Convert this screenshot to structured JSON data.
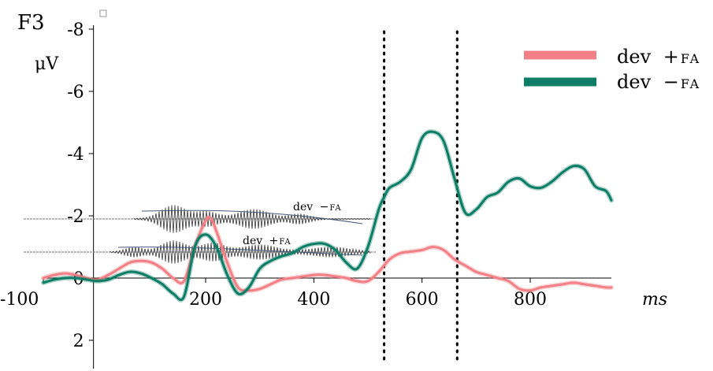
{
  "chart_data": {
    "type": "line",
    "panel_label": "F3",
    "y_unit_label": "μV",
    "x_unit_label": "ms",
    "x_range": [
      -100,
      950
    ],
    "y_range": [
      3,
      -8
    ],
    "y_inverted": true,
    "x_ticks": [
      "-100",
      "200",
      "400",
      "600",
      "800"
    ],
    "x_tick_values": [
      -100,
      200,
      400,
      600,
      800
    ],
    "y_ticks": [
      "-8",
      "-6",
      "-4",
      "-2",
      "0",
      "2"
    ],
    "y_tick_values": [
      -8,
      -6,
      -4,
      -2,
      0,
      2
    ],
    "vertical_markers_ms": [
      530,
      665
    ],
    "legend": {
      "placement": "top-right",
      "entries": [
        {
          "label": "dev",
          "symbol": "+",
          "sub": "FA",
          "color": "#f28086"
        },
        {
          "label": "dev",
          "symbol": "−",
          "sub": "FA",
          "color": "#0e7d65"
        }
      ]
    },
    "inset": {
      "label_top": "dev",
      "symbol_top": "−",
      "sub_top": "FA",
      "label_bottom": "dev",
      "symbol_bottom": "+",
      "sub_bottom": "FA"
    },
    "series": [
      {
        "color": "#f28086",
        "x": [
          -100,
          -80,
          -60,
          -40,
          -20,
          0,
          20,
          40,
          60,
          80,
          100,
          120,
          140,
          160,
          180,
          200,
          210,
          220,
          240,
          260,
          280,
          300,
          320,
          340,
          360,
          380,
          400,
          420,
          440,
          460,
          480,
          500,
          520,
          540,
          560,
          580,
          600,
          620,
          640,
          660,
          680,
          700,
          720,
          740,
          760,
          780,
          800,
          820,
          840,
          860,
          880,
          900,
          920,
          940,
          950
        ],
        "y": [
          0.0,
          -0.1,
          -0.15,
          -0.1,
          0.0,
          0.05,
          -0.1,
          -0.3,
          -0.5,
          -0.55,
          -0.5,
          -0.3,
          0.0,
          0.1,
          -1.0,
          -1.85,
          -1.9,
          -1.5,
          -0.5,
          0.3,
          0.4,
          0.35,
          0.2,
          0.05,
          0.0,
          -0.05,
          -0.1,
          -0.1,
          -0.05,
          0.0,
          0.1,
          0.1,
          -0.2,
          -0.6,
          -0.8,
          -0.85,
          -0.9,
          -1.0,
          -0.9,
          -0.6,
          -0.4,
          -0.2,
          -0.1,
          0.0,
          0.1,
          0.35,
          0.4,
          0.3,
          0.25,
          0.2,
          0.15,
          0.2,
          0.25,
          0.3,
          0.3
        ]
      },
      {
        "color": "#0e7d65",
        "x": [
          -100,
          -80,
          -60,
          -40,
          -20,
          0,
          20,
          40,
          60,
          80,
          100,
          120,
          140,
          160,
          180,
          200,
          220,
          240,
          260,
          280,
          300,
          320,
          340,
          360,
          380,
          400,
          420,
          440,
          460,
          480,
          500,
          520,
          530,
          540,
          560,
          580,
          600,
          620,
          640,
          660,
          680,
          700,
          720,
          740,
          760,
          780,
          800,
          820,
          840,
          860,
          880,
          900,
          920,
          940,
          950
        ],
        "y": [
          0.15,
          0.05,
          0.0,
          0.0,
          0.05,
          0.1,
          0.05,
          -0.1,
          -0.2,
          -0.15,
          0.0,
          0.2,
          0.5,
          0.6,
          -1.0,
          -1.4,
          -1.0,
          -0.1,
          0.5,
          0.3,
          -0.3,
          -0.55,
          -0.7,
          -0.8,
          -1.0,
          -1.1,
          -1.1,
          -0.9,
          -0.5,
          -0.3,
          -1.0,
          -2.2,
          -2.6,
          -2.9,
          -3.1,
          -3.5,
          -4.5,
          -4.7,
          -4.4,
          -3.2,
          -2.1,
          -2.2,
          -2.6,
          -2.75,
          -3.1,
          -3.2,
          -2.95,
          -2.9,
          -3.1,
          -3.4,
          -3.6,
          -3.5,
          -2.95,
          -2.8,
          -2.5
        ]
      }
    ]
  }
}
